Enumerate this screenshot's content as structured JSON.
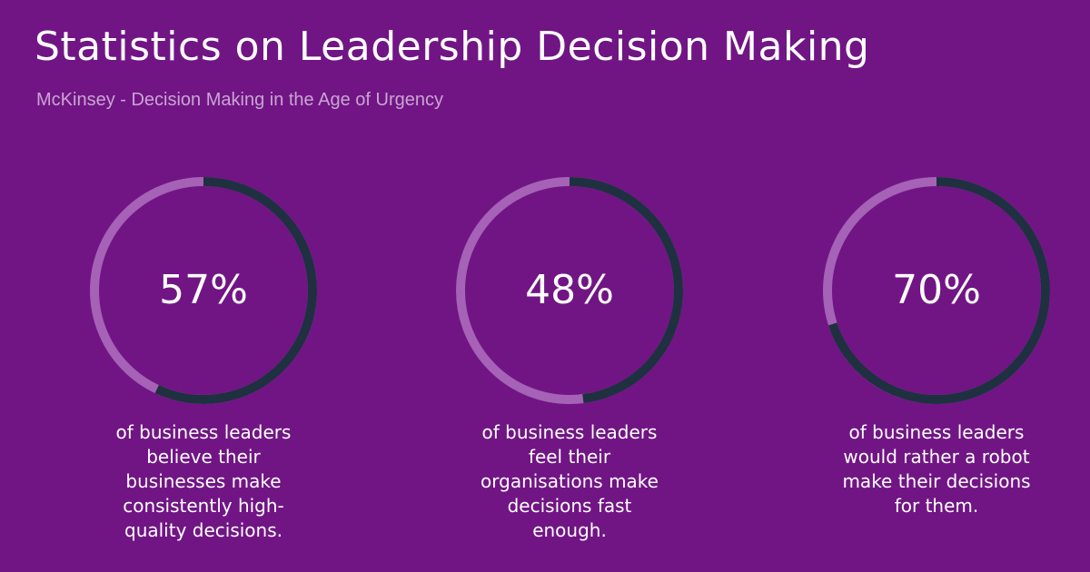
{
  "header": {
    "title": "Statistics on Leadership Decision Making",
    "subtitle": "McKinsey - Decision Making in the Age of Urgency"
  },
  "colors": {
    "background": "#711585",
    "ring_track": "#a562b6",
    "ring_fill": "#1f3040",
    "text": "#ffffff",
    "subtitle": "#c9a5d2"
  },
  "chart_data": {
    "type": "pie",
    "title": "Statistics on Leadership Decision Making",
    "subtitle": "McKinsey - Decision Making in the Age of Urgency",
    "categories": [
      "of business leaders believe their businesses make consistently high-quality decisions.",
      "of business leaders feel their organisations make decisions fast enough.",
      "of business leaders would rather a robot make their decisions for them."
    ],
    "values": [
      57,
      48,
      70
    ],
    "labels": [
      "57%",
      "48%",
      "70%"
    ]
  },
  "stats": [
    {
      "label": "57%",
      "caption_lines": [
        "of business leaders",
        "believe their",
        "businesses make",
        "consistently high-",
        "quality decisions."
      ]
    },
    {
      "label": "48%",
      "caption_lines": [
        "of business leaders",
        "feel their",
        "organisations make",
        "decisions fast",
        "enough."
      ]
    },
    {
      "label": "70%",
      "caption_lines": [
        "of business leaders",
        "would rather a robot",
        "make their decisions",
        "for them."
      ]
    }
  ]
}
